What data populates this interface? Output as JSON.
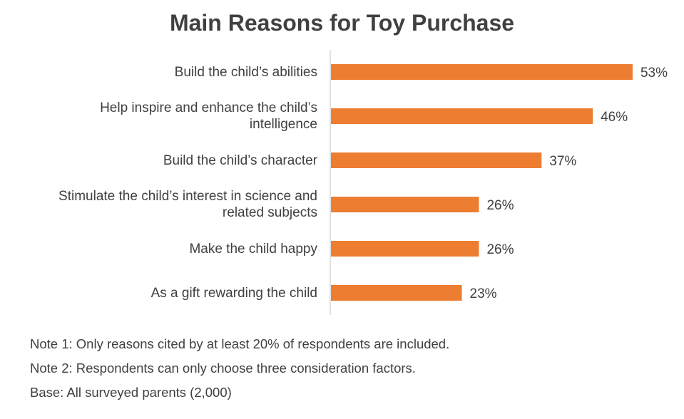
{
  "chart_data": {
    "type": "bar",
    "orientation": "horizontal",
    "title": "Main Reasons for Toy Purchase",
    "categories": [
      "Build the child’s abilities",
      "Help inspire and enhance the child’s intelligence",
      "Build the child’s character",
      "Stimulate the child’s interest in science and related subjects",
      "Make the child happy",
      "As a gift rewarding the child"
    ],
    "category_lines": [
      [
        "Build the child’s abilities"
      ],
      [
        "Help inspire and enhance the child’s",
        "intelligence"
      ],
      [
        "Build the child’s character"
      ],
      [
        "Stimulate the child’s interest in science and",
        "related subjects"
      ],
      [
        "Make the child happy"
      ],
      [
        "As a gift rewarding the child"
      ]
    ],
    "values": [
      53,
      46,
      37,
      26,
      26,
      23
    ],
    "data_labels": [
      "53%",
      "46%",
      "37%",
      "26%",
      "26%",
      "23%"
    ],
    "unit": "%",
    "xlim": [
      0,
      55
    ],
    "grid": false,
    "legend": "none",
    "bar_color": "#ED7D31"
  },
  "notes": [
    "Note 1: Only reasons cited by at least 20% of respondents are included.",
    "Note 2: Respondents can only choose three consideration factors.",
    "Base: All surveyed parents (2,000)"
  ]
}
